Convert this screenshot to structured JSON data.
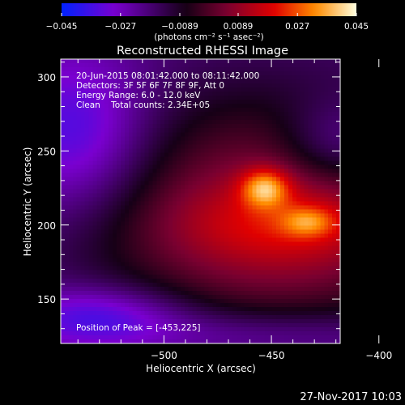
{
  "chart_data": {
    "type": "heatmap",
    "title": "Reconstructed RHESSI Image",
    "xlabel": "Heliocentric X (arcsec)",
    "ylabel": "Heliocentric Y (arcsec)",
    "xlim": [
      -548,
      -418
    ],
    "ylim": [
      120,
      312
    ],
    "x_ticks": [
      -500,
      -450,
      -400
    ],
    "x_tick_labels": [
      "−500",
      "−450",
      "−400"
    ],
    "y_ticks": [
      150,
      200,
      250,
      300
    ],
    "y_tick_labels": [
      "150",
      "200",
      "250",
      "300"
    ],
    "colorbar": {
      "min": -0.045,
      "max": 0.045,
      "ticks": [
        -0.045,
        -0.027,
        -0.0089,
        0.0089,
        0.027,
        0.045
      ],
      "tick_labels": [
        "−0.045",
        "−0.027",
        "−0.0089",
        "0.0089",
        "0.027",
        "0.045"
      ],
      "units_label": "(photons cm⁻² s⁻¹ asec⁻²)",
      "colormap": "rhessi-heat",
      "colors": [
        "#0022ff",
        "#7a00d0",
        "#160016",
        "#7a0030",
        "#e00000",
        "#ff8c00",
        "#ffffe0"
      ]
    },
    "annotations": {
      "time": "20-Jun-2015 08:01:42.000 to 08:11:42.000",
      "detectors": "Detectors: 3F 5F 6F 7F 8F 9F, Att 0",
      "energy": "Energy Range: 6.0 - 12.0 keV",
      "clean": "Clean    Total counts: 2.34E+05",
      "peak": "Position of Peak = [-453,225]"
    },
    "sources": [
      {
        "x": -453,
        "y": 225,
        "peak_value": 0.045
      },
      {
        "x": -433,
        "y": 202,
        "peak_value": 0.036
      }
    ]
  },
  "timestamp": "27-Nov-2017 10:03"
}
